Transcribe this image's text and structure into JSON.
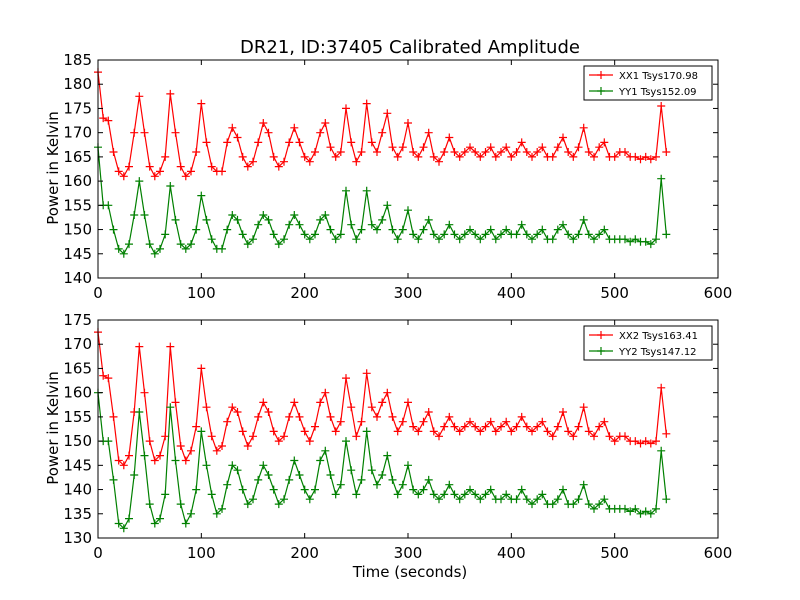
{
  "chart_data": [
    {
      "type": "line",
      "title": "DR21, ID:37405 Calibrated Amplitude",
      "xlabel": "",
      "ylabel": "Power in Kelvin",
      "xlim": [
        0,
        600
      ],
      "ylim": [
        140,
        185
      ],
      "xticks": [
        0,
        100,
        200,
        300,
        400,
        500,
        600
      ],
      "yticks": [
        140,
        145,
        150,
        155,
        160,
        165,
        170,
        175,
        180,
        185
      ],
      "legend_position": "top-right",
      "marker": "plus",
      "series": [
        {
          "name": "XX1 Tsys170.98",
          "color": "#ff0000",
          "x": [
            0,
            5,
            10,
            15,
            20,
            25,
            30,
            35,
            40,
            45,
            50,
            55,
            60,
            65,
            70,
            75,
            80,
            85,
            90,
            95,
            100,
            105,
            110,
            115,
            120,
            125,
            130,
            135,
            140,
            145,
            150,
            155,
            160,
            165,
            170,
            175,
            180,
            185,
            190,
            195,
            200,
            205,
            210,
            215,
            220,
            225,
            230,
            235,
            240,
            245,
            250,
            255,
            260,
            265,
            270,
            275,
            280,
            285,
            290,
            295,
            300,
            305,
            310,
            315,
            320,
            325,
            330,
            335,
            340,
            345,
            350,
            355,
            360,
            365,
            370,
            375,
            380,
            385,
            390,
            395,
            400,
            405,
            410,
            415,
            420,
            425,
            430,
            435,
            440,
            445,
            450,
            455,
            460,
            465,
            470,
            475,
            480,
            485,
            490,
            495,
            500,
            505,
            510,
            515,
            520,
            525,
            530,
            535,
            540,
            545,
            550
          ],
          "y": [
            182.5,
            173,
            172.5,
            166,
            162,
            161,
            163,
            170,
            177.5,
            170,
            163,
            161,
            162,
            165,
            178,
            170,
            163,
            161,
            162,
            166,
            176,
            168,
            163,
            162,
            162,
            168,
            171,
            169,
            165,
            163,
            164,
            168,
            172,
            170,
            165,
            163,
            164,
            168,
            171,
            168,
            165,
            164,
            166,
            170,
            172,
            167,
            165,
            166,
            175,
            168,
            164,
            166,
            176,
            168,
            166,
            170,
            174,
            167,
            165,
            167,
            172,
            166,
            165,
            167,
            170,
            165,
            164,
            166,
            169,
            166,
            165,
            166,
            167,
            166,
            165,
            166,
            167,
            165,
            166,
            167,
            165,
            166,
            168,
            166,
            165,
            166,
            167,
            165,
            165,
            167,
            169,
            166,
            165,
            167,
            171,
            166,
            165,
            167,
            168,
            165,
            165,
            166,
            166,
            165,
            165,
            164.5,
            165,
            164.5,
            165,
            175.5,
            166
          ]
        },
        {
          "name": "YY1 Tsys152.09",
          "color": "#008000",
          "x": [
            0,
            5,
            10,
            15,
            20,
            25,
            30,
            35,
            40,
            45,
            50,
            55,
            60,
            65,
            70,
            75,
            80,
            85,
            90,
            95,
            100,
            105,
            110,
            115,
            120,
            125,
            130,
            135,
            140,
            145,
            150,
            155,
            160,
            165,
            170,
            175,
            180,
            185,
            190,
            195,
            200,
            205,
            210,
            215,
            220,
            225,
            230,
            235,
            240,
            245,
            250,
            255,
            260,
            265,
            270,
            275,
            280,
            285,
            290,
            295,
            300,
            305,
            310,
            315,
            320,
            325,
            330,
            335,
            340,
            345,
            350,
            355,
            360,
            365,
            370,
            375,
            380,
            385,
            390,
            395,
            400,
            405,
            410,
            415,
            420,
            425,
            430,
            435,
            440,
            445,
            450,
            455,
            460,
            465,
            470,
            475,
            480,
            485,
            490,
            495,
            500,
            505,
            510,
            515,
            520,
            525,
            530,
            535,
            540,
            545,
            550
          ],
          "y": [
            167,
            155,
            155,
            150,
            146,
            145,
            147,
            153,
            160,
            153,
            147,
            145,
            146,
            149,
            159,
            152,
            147,
            146,
            147,
            150,
            157,
            152,
            148,
            146,
            146,
            150,
            153,
            152,
            149,
            147,
            148,
            151,
            153,
            152,
            149,
            147,
            148,
            151,
            153,
            151,
            149,
            148,
            149,
            152,
            153,
            150,
            148,
            149,
            158,
            151,
            148,
            150,
            158,
            151,
            150,
            152,
            155,
            150,
            148,
            150,
            154,
            149,
            148,
            150,
            152,
            149,
            148,
            149,
            151,
            149,
            148,
            149,
            150,
            149,
            148,
            149,
            150,
            148,
            149,
            150,
            149,
            149,
            151,
            149,
            148,
            149,
            150,
            148,
            148,
            150,
            151,
            149,
            148,
            149,
            152,
            149,
            148,
            149,
            150,
            148,
            148,
            148,
            148,
            147.5,
            148,
            147.5,
            147.5,
            147,
            148,
            160.5,
            149
          ]
        }
      ]
    },
    {
      "type": "line",
      "title": "",
      "xlabel": "Time (seconds)",
      "ylabel": "Power in Kelvin",
      "xlim": [
        0,
        600
      ],
      "ylim": [
        130,
        175
      ],
      "xticks": [
        0,
        100,
        200,
        300,
        400,
        500,
        600
      ],
      "yticks": [
        130,
        135,
        140,
        145,
        150,
        155,
        160,
        165,
        170,
        175
      ],
      "legend_position": "top-right",
      "marker": "plus",
      "series": [
        {
          "name": "XX2 Tsys163.41",
          "color": "#ff0000",
          "x": [
            0,
            5,
            10,
            15,
            20,
            25,
            30,
            35,
            40,
            45,
            50,
            55,
            60,
            65,
            70,
            75,
            80,
            85,
            90,
            95,
            100,
            105,
            110,
            115,
            120,
            125,
            130,
            135,
            140,
            145,
            150,
            155,
            160,
            165,
            170,
            175,
            180,
            185,
            190,
            195,
            200,
            205,
            210,
            215,
            220,
            225,
            230,
            235,
            240,
            245,
            250,
            255,
            260,
            265,
            270,
            275,
            280,
            285,
            290,
            295,
            300,
            305,
            310,
            315,
            320,
            325,
            330,
            335,
            340,
            345,
            350,
            355,
            360,
            365,
            370,
            375,
            380,
            385,
            390,
            395,
            400,
            405,
            410,
            415,
            420,
            425,
            430,
            435,
            440,
            445,
            450,
            455,
            460,
            465,
            470,
            475,
            480,
            485,
            490,
            495,
            500,
            505,
            510,
            515,
            520,
            525,
            530,
            535,
            540,
            545,
            550
          ],
          "y": [
            172.5,
            163.5,
            163,
            155,
            146,
            145,
            147,
            156,
            169.5,
            160,
            150,
            146,
            147,
            151,
            169.5,
            158,
            149,
            146,
            148,
            153,
            165,
            157,
            151,
            148,
            149,
            154,
            157,
            156,
            152,
            149,
            151,
            155,
            158,
            156,
            152,
            150,
            151,
            155,
            158,
            155,
            152,
            150,
            153,
            158,
            160,
            155,
            152,
            154,
            163,
            157,
            151,
            154,
            164,
            157,
            155,
            158,
            160,
            155,
            152,
            154,
            158,
            153,
            152,
            154,
            156,
            152,
            151,
            153,
            155,
            153,
            152,
            153,
            154,
            153,
            152,
            153,
            154,
            152,
            153,
            154,
            152,
            153,
            155,
            153,
            152,
            153,
            154,
            152,
            151,
            153,
            156,
            152,
            151,
            153,
            157,
            152,
            151,
            153,
            154,
            151,
            150,
            151,
            151,
            150,
            150,
            149.5,
            150,
            149.5,
            150,
            161,
            151.5
          ]
        },
        {
          "name": "YY2 Tsys147.12",
          "color": "#008000",
          "x": [
            0,
            5,
            10,
            15,
            20,
            25,
            30,
            35,
            40,
            45,
            50,
            55,
            60,
            65,
            70,
            75,
            80,
            85,
            90,
            95,
            100,
            105,
            110,
            115,
            120,
            125,
            130,
            135,
            140,
            145,
            150,
            155,
            160,
            165,
            170,
            175,
            180,
            185,
            190,
            195,
            200,
            205,
            210,
            215,
            220,
            225,
            230,
            235,
            240,
            245,
            250,
            255,
            260,
            265,
            270,
            275,
            280,
            285,
            290,
            295,
            300,
            305,
            310,
            315,
            320,
            325,
            330,
            335,
            340,
            345,
            350,
            355,
            360,
            365,
            370,
            375,
            380,
            385,
            390,
            395,
            400,
            405,
            410,
            415,
            420,
            425,
            430,
            435,
            440,
            445,
            450,
            455,
            460,
            465,
            470,
            475,
            480,
            485,
            490,
            495,
            500,
            505,
            510,
            515,
            520,
            525,
            530,
            535,
            540,
            545,
            550
          ],
          "y": [
            160,
            150,
            150,
            142,
            133,
            132,
            134,
            143,
            156,
            147,
            137,
            133,
            134,
            139,
            157,
            146,
            137,
            133,
            135,
            140,
            152,
            145,
            139,
            135,
            136,
            141,
            145,
            144,
            140,
            137,
            138,
            142,
            145,
            143,
            140,
            137,
            138,
            142,
            146,
            143,
            140,
            138,
            140,
            146,
            148,
            143,
            139,
            141,
            150,
            144,
            139,
            142,
            152,
            144,
            141,
            143,
            147,
            142,
            139,
            141,
            145,
            140,
            139,
            140,
            142,
            139,
            138,
            139,
            141,
            139,
            138,
            139,
            140,
            139,
            138,
            139,
            140,
            138,
            138,
            139,
            138,
            138,
            140,
            138,
            137,
            138,
            139,
            137,
            137,
            138,
            140,
            137,
            137,
            138,
            141,
            137,
            136,
            137,
            138,
            136,
            136,
            136,
            136,
            135.5,
            136,
            135,
            135.5,
            135,
            136,
            148,
            138
          ]
        }
      ]
    }
  ]
}
